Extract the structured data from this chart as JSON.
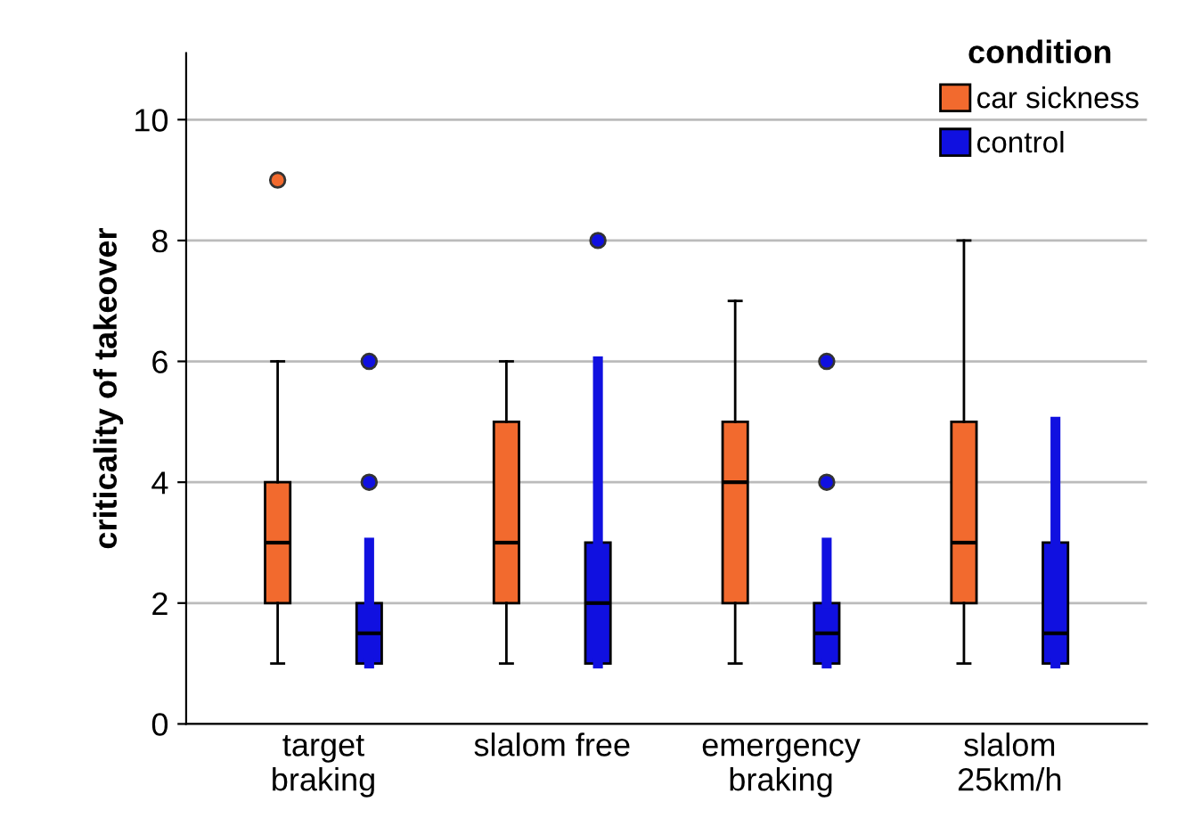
{
  "chart_data": {
    "type": "box",
    "ylabel": "criticality of takeover",
    "legend_title": "condition",
    "legend": "top right",
    "grid": "y",
    "categories": [
      "target\nbraking",
      "slalom free",
      "emergency\nbraking",
      "slalom\n25km/h"
    ],
    "ylim": [
      0,
      11.1
    ],
    "yticks": [
      0,
      2,
      4,
      6,
      8,
      10
    ],
    "marker": "circle",
    "series": [
      {
        "name": "car sickness",
        "color": "#f26a2e",
        "boxes": [
          {
            "low": 1,
            "q1": 2,
            "median": 3,
            "q3": 4,
            "high": 6,
            "outliers": [
              9
            ]
          },
          {
            "low": 1,
            "q1": 2,
            "median": 3,
            "q3": 5,
            "high": 6
          },
          {
            "low": 1,
            "q1": 2,
            "median": 4,
            "q3": 5,
            "high": 7
          },
          {
            "low": 1,
            "q1": 2,
            "median": 3,
            "q3": 5,
            "high": 8
          }
        ]
      },
      {
        "name": "control",
        "color": "#1010e0",
        "boxes": [
          {
            "low": 1,
            "q1": 1,
            "median": 1.5,
            "q3": 2,
            "high": 3,
            "outliers": [
              4,
              6
            ]
          },
          {
            "low": 1,
            "q1": 1,
            "median": 2,
            "q3": 3,
            "high": 6,
            "outliers": [
              8
            ]
          },
          {
            "low": 1,
            "q1": 1,
            "median": 1.5,
            "q3": 2,
            "high": 3,
            "outliers": [
              4,
              6
            ]
          },
          {
            "low": 1,
            "q1": 1,
            "median": 1.5,
            "q3": 3,
            "high": 5
          }
        ]
      }
    ]
  }
}
